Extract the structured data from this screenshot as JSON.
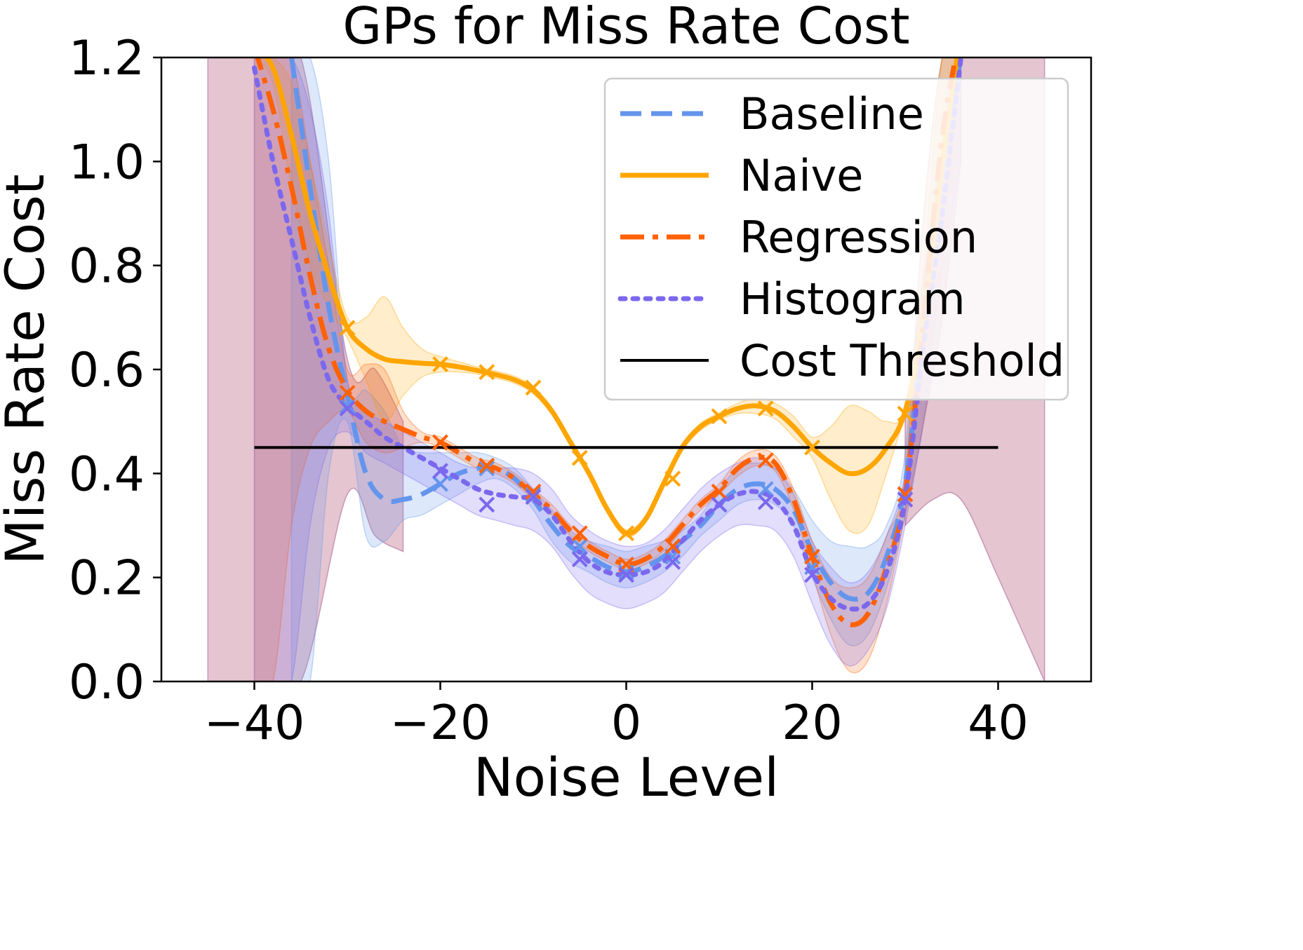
{
  "chart_data": {
    "type": "line",
    "title": "GPs for Miss Rate Cost",
    "xlabel": "Noise Level",
    "ylabel": "Miss Rate Cost",
    "xlim": [
      -50,
      50
    ],
    "ylim": [
      0,
      1.2
    ],
    "x_ticks": [
      -40,
      -20,
      0,
      20,
      40
    ],
    "x_tick_labels": [
      "−40",
      "−20",
      "0",
      "20",
      "40"
    ],
    "y_ticks": [
      0,
      0.2,
      0.4,
      0.6,
      0.8,
      1.0,
      1.2
    ],
    "y_tick_labels": [
      "0.0",
      "0.2",
      "0.4",
      "0.6",
      "0.8",
      "1.0",
      "1.2"
    ],
    "grid": false,
    "legend_position": "top-right",
    "colors": {
      "baseline": "#6495ED",
      "naive": "#FFA500",
      "regression": "#FF6103",
      "histogram": "#7B68EE",
      "threshold": "#000000"
    },
    "series": [
      {
        "name": "Baseline",
        "style": "dashed",
        "color": "#6495ED",
        "x": [
          -36,
          -34,
          -32,
          -30,
          -28,
          -26,
          -24,
          -22,
          -20,
          -18,
          -16,
          -14,
          -12,
          -10,
          -8,
          -6,
          -4,
          -2,
          0,
          2,
          4,
          6,
          8,
          10,
          12,
          14,
          16,
          18,
          20,
          22,
          24,
          26,
          28,
          30,
          32,
          34,
          36
        ],
        "y": [
          1.2,
          0.95,
          0.72,
          0.55,
          0.4,
          0.35,
          0.35,
          0.36,
          0.38,
          0.4,
          0.41,
          0.41,
          0.39,
          0.35,
          0.3,
          0.26,
          0.24,
          0.22,
          0.21,
          0.22,
          0.24,
          0.27,
          0.3,
          0.34,
          0.37,
          0.38,
          0.37,
          0.33,
          0.25,
          0.19,
          0.16,
          0.17,
          0.24,
          0.38,
          0.7,
          1.0,
          1.2
        ],
        "observations": {
          "x": [
            -30,
            -20,
            -15,
            -10,
            -5,
            0,
            5,
            10,
            15,
            20,
            30
          ],
          "y": [
            0.53,
            0.38,
            0.41,
            0.36,
            0.26,
            0.21,
            0.24,
            0.34,
            0.37,
            0.22,
            0.36
          ]
        },
        "band_upper": [
          1.2,
          1.2,
          1.0,
          0.58,
          0.56,
          0.52,
          0.45,
          0.44,
          0.44,
          0.44,
          0.44,
          0.43,
          0.41,
          0.37,
          0.33,
          0.29,
          0.27,
          0.26,
          0.25,
          0.26,
          0.27,
          0.29,
          0.32,
          0.37,
          0.41,
          0.42,
          0.41,
          0.37,
          0.31,
          0.27,
          0.26,
          0.26,
          0.3,
          0.44,
          0.9,
          1.2,
          1.2
        ],
        "band_lower": [
          0.0,
          0.0,
          0.4,
          0.5,
          0.28,
          0.27,
          0.31,
          0.32,
          0.34,
          0.36,
          0.38,
          0.39,
          0.37,
          0.33,
          0.27,
          0.23,
          0.21,
          0.19,
          0.18,
          0.19,
          0.21,
          0.24,
          0.28,
          0.31,
          0.34,
          0.35,
          0.34,
          0.3,
          0.2,
          0.12,
          0.07,
          0.09,
          0.18,
          0.32,
          0.5,
          0.8,
          1.0
        ]
      },
      {
        "name": "Naive",
        "style": "solid",
        "color": "#FFA500",
        "x": [
          -40,
          -38,
          -36,
          -34,
          -32,
          -30,
          -28,
          -26,
          -24,
          -22,
          -20,
          -18,
          -16,
          -14,
          -12,
          -10,
          -8,
          -6,
          -4,
          -2,
          0,
          2,
          4,
          6,
          8,
          10,
          12,
          14,
          16,
          18,
          20,
          22,
          24,
          26,
          28,
          30,
          32,
          34,
          36
        ],
        "y": [
          1.22,
          1.18,
          1.05,
          0.9,
          0.78,
          0.68,
          0.64,
          0.62,
          0.615,
          0.612,
          0.61,
          0.605,
          0.598,
          0.59,
          0.58,
          0.56,
          0.52,
          0.46,
          0.4,
          0.33,
          0.285,
          0.31,
          0.38,
          0.45,
          0.49,
          0.51,
          0.525,
          0.53,
          0.52,
          0.49,
          0.45,
          0.42,
          0.4,
          0.41,
          0.45,
          0.52,
          0.7,
          1.0,
          1.25
        ],
        "observations": {
          "x": [
            -30,
            -20,
            -15,
            -10,
            -5,
            0,
            5,
            10,
            15,
            20,
            30
          ],
          "y": [
            0.68,
            0.61,
            0.595,
            0.565,
            0.43,
            0.285,
            0.39,
            0.51,
            0.525,
            0.45,
            0.515
          ]
        },
        "band_upper": [
          1.22,
          1.2,
          1.15,
          1.0,
          0.84,
          0.7,
          0.7,
          0.74,
          0.68,
          0.64,
          0.625,
          0.615,
          0.605,
          0.597,
          0.587,
          0.567,
          0.527,
          0.467,
          0.407,
          0.337,
          0.292,
          0.317,
          0.387,
          0.457,
          0.497,
          0.517,
          0.535,
          0.545,
          0.535,
          0.51,
          0.47,
          0.49,
          0.53,
          0.52,
          0.5,
          0.53,
          0.8,
          1.2,
          1.25
        ],
        "band_lower": [
          1.2,
          1.15,
          0.95,
          0.8,
          0.72,
          0.66,
          0.58,
          0.5,
          0.55,
          0.585,
          0.595,
          0.595,
          0.591,
          0.583,
          0.573,
          0.553,
          0.513,
          0.453,
          0.393,
          0.323,
          0.278,
          0.303,
          0.373,
          0.443,
          0.483,
          0.503,
          0.515,
          0.515,
          0.505,
          0.47,
          0.43,
          0.35,
          0.29,
          0.3,
          0.4,
          0.51,
          0.6,
          0.8,
          1.2
        ]
      },
      {
        "name": "Regression",
        "style": "dashdot",
        "color": "#FF6103",
        "x": [
          -40,
          -38,
          -36,
          -34,
          -32,
          -30,
          -28,
          -26,
          -24,
          -22,
          -20,
          -18,
          -16,
          -14,
          -12,
          -10,
          -8,
          -6,
          -4,
          -2,
          0,
          2,
          4,
          6,
          8,
          10,
          12,
          14,
          16,
          18,
          20,
          22,
          24,
          26,
          28,
          30,
          32,
          34,
          36
        ],
        "y": [
          1.22,
          1.1,
          0.95,
          0.78,
          0.64,
          0.56,
          0.52,
          0.5,
          0.485,
          0.47,
          0.46,
          0.44,
          0.42,
          0.41,
          0.39,
          0.36,
          0.33,
          0.29,
          0.26,
          0.24,
          0.225,
          0.235,
          0.26,
          0.3,
          0.34,
          0.37,
          0.41,
          0.43,
          0.42,
          0.35,
          0.24,
          0.15,
          0.11,
          0.13,
          0.22,
          0.36,
          0.7,
          1.05,
          1.25
        ],
        "observations": {
          "x": [
            -30,
            -20,
            -15,
            -10,
            -5,
            0,
            5,
            10,
            15,
            20,
            30
          ],
          "y": [
            0.555,
            0.46,
            0.415,
            0.365,
            0.285,
            0.225,
            0.26,
            0.365,
            0.425,
            0.24,
            0.36
          ]
        },
        "band_upper": [
          1.22,
          1.2,
          1.2,
          1.0,
          0.8,
          0.6,
          0.61,
          0.6,
          0.52,
          0.48,
          0.47,
          0.45,
          0.43,
          0.42,
          0.4,
          0.37,
          0.34,
          0.3,
          0.27,
          0.25,
          0.235,
          0.245,
          0.27,
          0.31,
          0.35,
          0.38,
          0.425,
          0.445,
          0.435,
          0.37,
          0.27,
          0.2,
          0.18,
          0.2,
          0.28,
          0.4,
          0.9,
          1.2,
          1.25
        ],
        "band_lower": [
          0.0,
          0.0,
          0.3,
          0.45,
          0.5,
          0.52,
          0.46,
          0.44,
          0.45,
          0.46,
          0.45,
          0.43,
          0.41,
          0.4,
          0.38,
          0.35,
          0.32,
          0.28,
          0.25,
          0.23,
          0.215,
          0.225,
          0.25,
          0.29,
          0.33,
          0.36,
          0.395,
          0.415,
          0.405,
          0.33,
          0.21,
          0.09,
          0.02,
          0.04,
          0.15,
          0.32,
          0.5,
          0.7,
          1.0
        ]
      },
      {
        "name": "Histogram",
        "style": "dotted",
        "color": "#7B68EE",
        "x": [
          -40,
          -38,
          -36,
          -34,
          -32,
          -30,
          -28,
          -26,
          -24,
          -22,
          -20,
          -18,
          -16,
          -14,
          -12,
          -10,
          -8,
          -6,
          -4,
          -2,
          0,
          2,
          4,
          6,
          8,
          10,
          12,
          14,
          16,
          18,
          20,
          22,
          24,
          26,
          28,
          30,
          32,
          34,
          36
        ],
        "y": [
          1.18,
          1.0,
          0.85,
          0.7,
          0.58,
          0.53,
          0.5,
          0.47,
          0.45,
          0.43,
          0.41,
          0.39,
          0.37,
          0.36,
          0.355,
          0.35,
          0.32,
          0.27,
          0.23,
          0.21,
          0.205,
          0.21,
          0.23,
          0.27,
          0.31,
          0.34,
          0.36,
          0.365,
          0.35,
          0.3,
          0.21,
          0.16,
          0.14,
          0.15,
          0.21,
          0.35,
          0.65,
          0.9,
          1.2
        ],
        "observations": {
          "x": [
            -30,
            -20,
            -15,
            -10,
            -5,
            0,
            5,
            10,
            15,
            20,
            30
          ],
          "y": [
            0.525,
            0.405,
            0.34,
            0.355,
            0.235,
            0.205,
            0.23,
            0.34,
            0.345,
            0.205,
            0.35
          ]
        },
        "band_upper": [
          1.2,
          1.2,
          1.2,
          1.1,
          0.9,
          0.58,
          0.52,
          0.5,
          0.48,
          0.46,
          0.44,
          0.42,
          0.41,
          0.41,
          0.41,
          0.4,
          0.37,
          0.32,
          0.29,
          0.27,
          0.26,
          0.265,
          0.29,
          0.33,
          0.37,
          0.4,
          0.42,
          0.43,
          0.41,
          0.36,
          0.27,
          0.22,
          0.19,
          0.21,
          0.28,
          0.4,
          0.7,
          1.0,
          1.2
        ],
        "band_lower": [
          0.0,
          0.0,
          0.0,
          0.3,
          0.45,
          0.48,
          0.44,
          0.42,
          0.4,
          0.38,
          0.36,
          0.34,
          0.32,
          0.31,
          0.3,
          0.29,
          0.26,
          0.21,
          0.17,
          0.15,
          0.14,
          0.15,
          0.17,
          0.21,
          0.25,
          0.28,
          0.3,
          0.3,
          0.29,
          0.24,
          0.15,
          0.07,
          0.03,
          0.06,
          0.14,
          0.3,
          0.5,
          0.7,
          1.0
        ]
      },
      {
        "name": "Cost Threshold",
        "style": "solid",
        "color": "#000000",
        "x": [
          -40,
          40
        ],
        "y": [
          0.45,
          0.45
        ]
      }
    ],
    "wide_bands": [
      {
        "name": "Naive outer",
        "color": "#FFA500",
        "x": [
          -45,
          -40,
          -35,
          -30,
          -28,
          -25,
          -20,
          -15,
          -10,
          -5,
          0,
          5,
          10,
          15,
          20,
          25,
          30,
          35,
          40,
          45
        ],
        "upper": [
          1.2,
          1.2,
          1.2,
          1.2,
          1.2,
          1.2,
          1.2,
          1.2,
          1.2,
          1.2,
          1.2,
          1.2,
          1.2,
          1.2,
          1.2,
          1.2,
          1.2,
          1.2,
          1.2,
          1.2
        ],
        "lower": [
          0.0,
          0.0,
          0.0,
          0.0,
          0.0,
          0.0,
          0.0,
          0.0,
          0.0,
          0.0,
          0.0,
          0.0,
          0.0,
          0.0,
          0.0,
          0.0,
          0.0,
          0.0,
          0.0,
          0.0
        ]
      }
    ],
    "edge_bands": {
      "left": {
        "x": [
          -45,
          -40,
          -35,
          -30,
          -27,
          -24
        ],
        "upper": [
          1.2,
          1.2,
          1.2,
          0.62,
          0.6,
          0.5
        ],
        "lower": [
          0.0,
          0.0,
          0.0,
          0.36,
          0.28,
          0.25
        ]
      },
      "right": {
        "x": [
          30,
          33,
          36,
          40,
          45
        ],
        "upper": [
          0.5,
          0.9,
          1.2,
          1.2,
          1.2
        ],
        "lower": [
          0.3,
          0.35,
          0.35,
          0.2,
          0.0
        ]
      }
    }
  }
}
